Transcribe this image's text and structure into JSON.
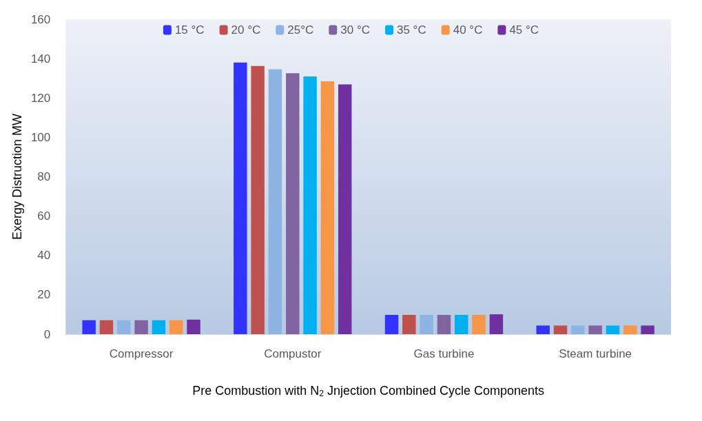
{
  "chart_data": {
    "type": "bar",
    "xlabel": "Pre Combustion with N$_{2}$ Jnjection Combined Cycle Components",
    "ylabel": "Exergy Distruction MW",
    "categories": [
      "Compressor",
      "Compustor",
      "Gas turbine",
      "Steam turbine"
    ],
    "series": [
      {
        "name": "15 °C",
        "color": "#3333ff",
        "values": [
          7.1,
          138,
          9.8,
          4.4
        ]
      },
      {
        "name": "20 °C",
        "color": "#c0504d",
        "values": [
          7.1,
          136.3,
          9.8,
          4.4
        ]
      },
      {
        "name": "25°C",
        "color": "#8eb4e3",
        "values": [
          7.1,
          134.6,
          9.8,
          4.4
        ]
      },
      {
        "name": "30 °C",
        "color": "#8064a2",
        "values": [
          7.1,
          132.6,
          9.8,
          4.4
        ]
      },
      {
        "name": "35 °C",
        "color": "#00b0f0",
        "values": [
          7.1,
          130.9,
          9.8,
          4.4
        ]
      },
      {
        "name": "40 °C",
        "color": "#f79646",
        "values": [
          7.1,
          128.5,
          9.8,
          4.4
        ]
      },
      {
        "name": "45 °C",
        "color": "#7030a0",
        "values": [
          7.4,
          126.9,
          10.1,
          4.4
        ]
      }
    ],
    "ylim": [
      0,
      160
    ],
    "yticks": [
      0,
      20,
      40,
      60,
      80,
      100,
      120,
      140,
      160
    ],
    "grid": false,
    "legend": "top"
  }
}
